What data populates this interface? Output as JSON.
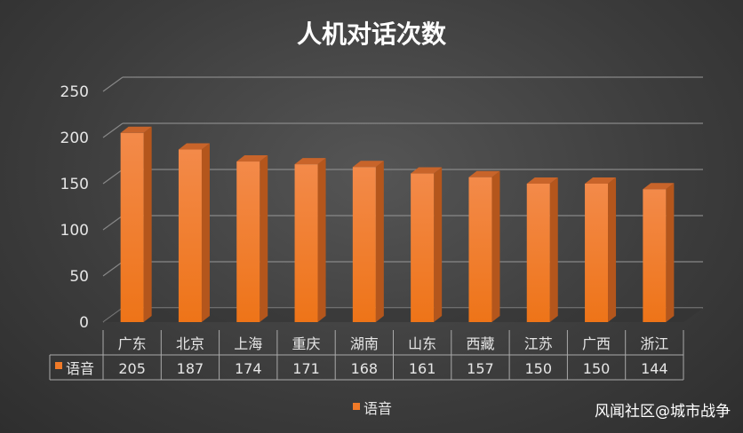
{
  "chart_data": {
    "type": "bar",
    "title": "人机对话次数",
    "categories": [
      "广东",
      "北京",
      "上海",
      "重庆",
      "湖南",
      "山东",
      "西藏",
      "江苏",
      "广西",
      "浙江"
    ],
    "series": [
      {
        "name": "语音",
        "values": [
          205,
          187,
          174,
          171,
          168,
          161,
          157,
          150,
          150,
          144
        ]
      }
    ],
    "ylim": [
      0,
      250
    ],
    "yticks": [
      0,
      50,
      100,
      150,
      200,
      250
    ],
    "grid": true,
    "legend": "bottom",
    "data_table": true,
    "three_d": true
  },
  "colors": {
    "bar": "#f07a28",
    "background": "#404040",
    "text": "#e6e6e6"
  },
  "watermark": "风闻社区@城市战争"
}
